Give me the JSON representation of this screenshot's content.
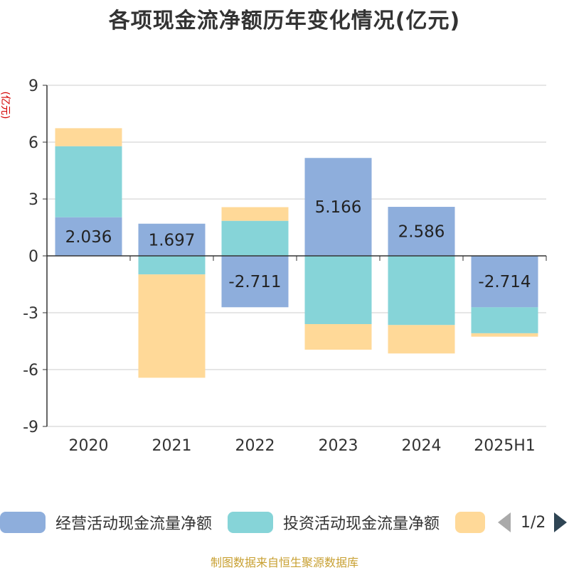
{
  "title": "各项现金流净额历年变化情况(亿元)",
  "unit": "(亿元)",
  "source": "制图数据来自恒生聚源数据库",
  "legend": {
    "items": [
      {
        "label": "经营活动现金流量净额",
        "color": "#8eaedc"
      },
      {
        "label": "投资活动现金流量净额",
        "color": "#86d4d8"
      },
      {
        "label": "",
        "color": "#ffd998"
      }
    ],
    "page": "1/2"
  },
  "chart_data": {
    "type": "bar",
    "stacked": true,
    "title": "各项现金流净额历年变化情况(亿元)",
    "ylabel": "(亿元)",
    "ylim": [
      -9,
      9
    ],
    "yticks": [
      9,
      6,
      3,
      0,
      -3,
      -6,
      -9
    ],
    "grid": true,
    "legend_position": "bottom",
    "categories": [
      "2020",
      "2021",
      "2022",
      "2023",
      "2024",
      "2025H1"
    ],
    "series": [
      {
        "name": "经营活动现金流量净额",
        "color": "#8eaedc",
        "values": [
          2.036,
          1.697,
          -2.711,
          5.166,
          2.586,
          -2.714
        ],
        "show_labels": true
      },
      {
        "name": "投资活动现金流量净额",
        "color": "#86d4d8",
        "values": [
          3.75,
          -0.98,
          1.85,
          -3.6,
          -3.65,
          -1.37
        ],
        "show_labels": false
      },
      {
        "name": "",
        "color": "#ffd998",
        "values": [
          0.95,
          -5.45,
          0.72,
          -1.35,
          -1.5,
          -0.18
        ],
        "show_labels": false
      }
    ]
  }
}
